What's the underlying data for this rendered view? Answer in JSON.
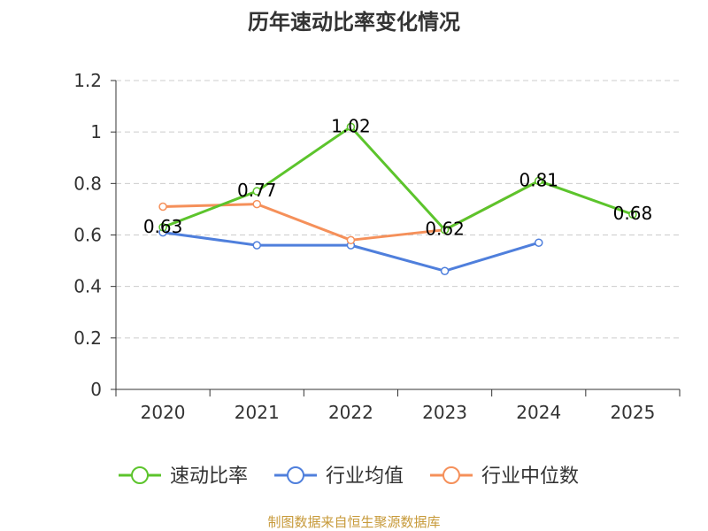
{
  "chart_data": {
    "type": "line",
    "title": "历年速动比率变化情况",
    "categories": [
      "2020",
      "2021",
      "2022",
      "2023",
      "2024",
      "2025"
    ],
    "ylim": [
      0,
      1.2
    ],
    "yticks": [
      "0",
      "0.2",
      "0.4",
      "0.6",
      "0.8",
      "1",
      "1.2"
    ],
    "grid": true,
    "legend_position": "bottom",
    "series": [
      {
        "name": "速动比率",
        "color": "#5cc42c",
        "values": [
          0.63,
          0.77,
          1.02,
          0.62,
          0.81,
          0.68
        ],
        "labels": [
          "0.63",
          "0.77",
          "1.02",
          "0.62",
          "0.81",
          "0.68"
        ]
      },
      {
        "name": "行业均值",
        "color": "#4f7fdc",
        "values": [
          0.61,
          0.56,
          0.56,
          0.46,
          0.57,
          null
        ]
      },
      {
        "name": "行业中位数",
        "color": "#f5905a",
        "values": [
          0.71,
          0.72,
          0.58,
          0.62,
          0.81,
          null
        ]
      }
    ]
  },
  "source": "制图数据来自恒生聚源数据库"
}
